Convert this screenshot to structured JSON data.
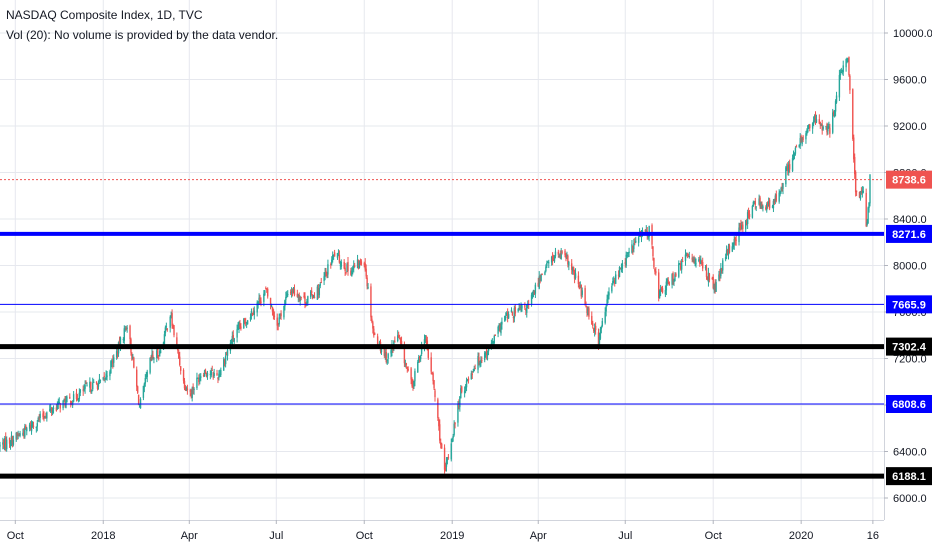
{
  "legend": {
    "title": "NASDAQ Composite Index, 1D, TVC",
    "volume_note": "Vol (20): No volume is provided by the data vendor."
  },
  "colors": {
    "up": "#26a69a",
    "down": "#ef5350",
    "grid": "#e6e8ee",
    "axis_text": "#131722",
    "price_line": "#ef5350"
  },
  "chart_data": {
    "type": "candlestick",
    "symbol": "NASDAQ Composite Index",
    "interval": "1D",
    "source": "TVC",
    "x_ticks": [
      "Oct",
      "2018",
      "Apr",
      "Jul",
      "Oct",
      "2019",
      "Apr",
      "Jul",
      "Oct",
      "2020",
      "16"
    ],
    "y_ticks": [
      "6000.0",
      "6400.0",
      "6800.0",
      "7200.0",
      "7600.0",
      "8000.0",
      "8400.0",
      "8800.0",
      "9200.0",
      "9600.0",
      "10000.0"
    ],
    "ylim": [
      5800,
      10150
    ],
    "grid": true,
    "last_price": 8738.6,
    "horizontal_lines": [
      {
        "value": 8271.6,
        "label": "8271.6",
        "color": "#0000ff",
        "width": 4
      },
      {
        "value": 7665.9,
        "label": "7665.9",
        "color": "#0000ff",
        "width": 1
      },
      {
        "value": 7302.4,
        "label": "7302.4",
        "color": "#000000",
        "width": 5
      },
      {
        "value": 6808.6,
        "label": "6808.6",
        "color": "#0000ff",
        "width": 1
      },
      {
        "value": 6188.1,
        "label": "6188.1",
        "color": "#000000",
        "width": 5
      }
    ],
    "close_path": [
      {
        "d": "2017-09-15",
        "v": 6450
      },
      {
        "d": "2017-10-01",
        "v": 6520
      },
      {
        "d": "2017-10-15",
        "v": 6600
      },
      {
        "d": "2017-11-01",
        "v": 6720
      },
      {
        "d": "2017-11-15",
        "v": 6800
      },
      {
        "d": "2017-12-01",
        "v": 6850
      },
      {
        "d": "2017-12-15",
        "v": 6950
      },
      {
        "d": "2018-01-01",
        "v": 7000
      },
      {
        "d": "2018-01-15",
        "v": 7250
      },
      {
        "d": "2018-01-26",
        "v": 7500
      },
      {
        "d": "2018-02-08",
        "v": 6780
      },
      {
        "d": "2018-02-20",
        "v": 7200
      },
      {
        "d": "2018-03-01",
        "v": 7250
      },
      {
        "d": "2018-03-12",
        "v": 7580
      },
      {
        "d": "2018-03-26",
        "v": 7000
      },
      {
        "d": "2018-04-02",
        "v": 6900
      },
      {
        "d": "2018-04-15",
        "v": 7100
      },
      {
        "d": "2018-05-01",
        "v": 7050
      },
      {
        "d": "2018-05-15",
        "v": 7350
      },
      {
        "d": "2018-06-01",
        "v": 7550
      },
      {
        "d": "2018-06-20",
        "v": 7780
      },
      {
        "d": "2018-07-02",
        "v": 7500
      },
      {
        "d": "2018-07-15",
        "v": 7800
      },
      {
        "d": "2018-08-01",
        "v": 7700
      },
      {
        "d": "2018-08-15",
        "v": 7800
      },
      {
        "d": "2018-08-31",
        "v": 8100
      },
      {
        "d": "2018-09-15",
        "v": 7950
      },
      {
        "d": "2018-10-01",
        "v": 8050
      },
      {
        "d": "2018-10-11",
        "v": 7400
      },
      {
        "d": "2018-10-25",
        "v": 7200
      },
      {
        "d": "2018-11-05",
        "v": 7400
      },
      {
        "d": "2018-11-20",
        "v": 6950
      },
      {
        "d": "2018-12-03",
        "v": 7400
      },
      {
        "d": "2018-12-12",
        "v": 7000
      },
      {
        "d": "2018-12-24",
        "v": 6200
      },
      {
        "d": "2019-01-10",
        "v": 6900
      },
      {
        "d": "2019-01-25",
        "v": 7150
      },
      {
        "d": "2019-02-10",
        "v": 7300
      },
      {
        "d": "2019-02-25",
        "v": 7550
      },
      {
        "d": "2019-03-10",
        "v": 7600
      },
      {
        "d": "2019-03-22",
        "v": 7650
      },
      {
        "d": "2019-04-05",
        "v": 7950
      },
      {
        "d": "2019-04-20",
        "v": 8100
      },
      {
        "d": "2019-05-01",
        "v": 8050
      },
      {
        "d": "2019-05-15",
        "v": 7800
      },
      {
        "d": "2019-06-03",
        "v": 7350
      },
      {
        "d": "2019-06-15",
        "v": 7800
      },
      {
        "d": "2019-07-01",
        "v": 8050
      },
      {
        "d": "2019-07-15",
        "v": 8250
      },
      {
        "d": "2019-07-26",
        "v": 8300
      },
      {
        "d": "2019-08-05",
        "v": 7750
      },
      {
        "d": "2019-08-20",
        "v": 7900
      },
      {
        "d": "2019-09-05",
        "v": 8100
      },
      {
        "d": "2019-09-20",
        "v": 8000
      },
      {
        "d": "2019-10-03",
        "v": 7800
      },
      {
        "d": "2019-10-15",
        "v": 8100
      },
      {
        "d": "2019-11-01",
        "v": 8350
      },
      {
        "d": "2019-11-15",
        "v": 8550
      },
      {
        "d": "2019-12-02",
        "v": 8500
      },
      {
        "d": "2019-12-16",
        "v": 8800
      },
      {
        "d": "2020-01-02",
        "v": 9100
      },
      {
        "d": "2020-01-15",
        "v": 9250
      },
      {
        "d": "2020-01-31",
        "v": 9150
      },
      {
        "d": "2020-02-10",
        "v": 9600
      },
      {
        "d": "2020-02-19",
        "v": 9800
      },
      {
        "d": "2020-02-27",
        "v": 8600
      },
      {
        "d": "2020-03-06",
        "v": 8650
      },
      {
        "d": "2020-03-09",
        "v": 8350
      },
      {
        "d": "2020-03-12",
        "v": 8550
      },
      {
        "d": "2020-03-13",
        "v": 8750
      }
    ]
  }
}
